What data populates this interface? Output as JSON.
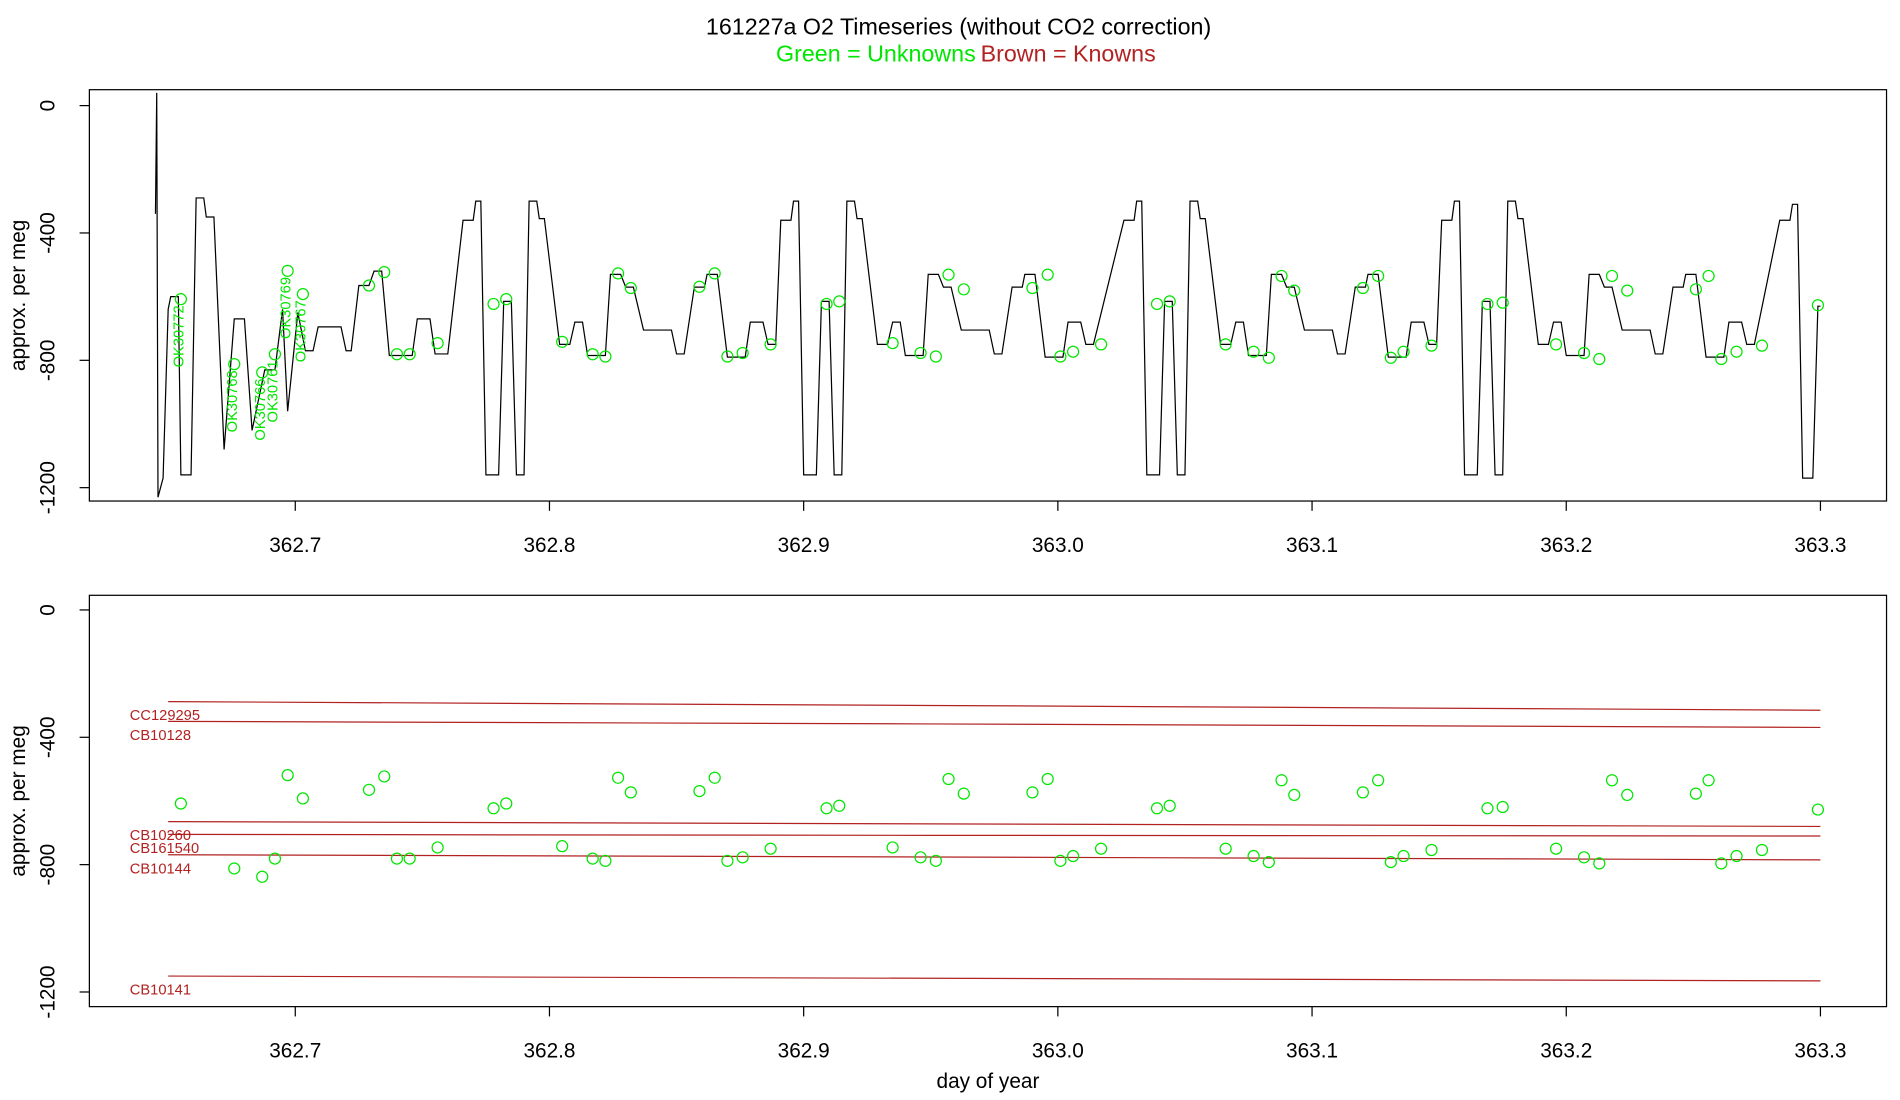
{
  "chart_data": [
    {
      "type": "line",
      "title": "161227a   O2 Timeseries (without CO2 correction)",
      "subtitle_unknowns": "Green = Unknowns",
      "subtitle_unknowns_color": "#00e600",
      "subtitle_knowns": "Brown = Knowns",
      "subtitle_knowns_color": "#b22222",
      "ylabel": "approx. per meg",
      "color": "#000000",
      "xlim": [
        362.619,
        363.326
      ],
      "ylim": [
        -1242,
        50
      ],
      "xticks": [
        362.7,
        362.8,
        362.9,
        {
          "value": 363,
          "label": "363.0"
        },
        363.1,
        363.2,
        363.3
      ],
      "yticks": [
        0,
        -400,
        -800,
        -1200
      ],
      "annotations": [
        "OK30772",
        "OK30768",
        "OK30766",
        "OK30761",
        "OK30769",
        "OK30767"
      ],
      "annotation_color": "#00e600",
      "x": [
        362.645,
        362.6455,
        362.646,
        362.648,
        362.65,
        362.651,
        362.654,
        362.655,
        362.659,
        362.661,
        362.664,
        362.665,
        362.668,
        362.672,
        362.676,
        362.68,
        362.683,
        362.688,
        362.692,
        362.695,
        362.697,
        362.701,
        362.704,
        362.707,
        362.709,
        362.718,
        362.72,
        362.722,
        362.725,
        362.729,
        362.731,
        362.734,
        362.737,
        362.746,
        362.748,
        362.753,
        362.755,
        362.76,
        362.766,
        362.77,
        362.771,
        362.773,
        362.775,
        362.78,
        362.782,
        362.785,
        362.787,
        362.79,
        362.792,
        362.795,
        362.796,
        362.798,
        362.804,
        362.808,
        362.81,
        362.813,
        362.815,
        362.822,
        362.824,
        362.828,
        362.83,
        362.833,
        362.837,
        362.848,
        362.85,
        362.853,
        362.857,
        362.861,
        362.862,
        362.866,
        362.87,
        362.877,
        362.879,
        362.884,
        362.886,
        362.889,
        362.891,
        362.895,
        362.896,
        362.898,
        362.9,
        362.905,
        362.907,
        362.91,
        362.912,
        362.915,
        362.917,
        362.92,
        362.921,
        362.923,
        362.929,
        362.933,
        362.935,
        362.938,
        362.94,
        362.947,
        362.949,
        362.953,
        362.955,
        362.958,
        362.962,
        362.973,
        362.975,
        362.978,
        362.982,
        362.986,
        362.987,
        362.991,
        362.995,
        363.002,
        363.004,
        363.009,
        363.011,
        363.014,
        363.026,
        363.03,
        363.031,
        363.033,
        363.035,
        363.04,
        363.042,
        363.045,
        363.047,
        363.05,
        363.052,
        363.055,
        363.056,
        363.058,
        363.064,
        363.068,
        363.07,
        363.073,
        363.075,
        363.082,
        363.084,
        363.088,
        363.09,
        363.093,
        363.097,
        363.108,
        363.11,
        363.113,
        363.117,
        363.121,
        363.122,
        363.126,
        363.13,
        363.137,
        363.139,
        363.144,
        363.146,
        363.149,
        363.151,
        363.155,
        363.156,
        363.158,
        363.16,
        363.165,
        363.167,
        363.17,
        363.172,
        363.175,
        363.177,
        363.18,
        363.181,
        363.183,
        363.189,
        363.193,
        363.195,
        363.198,
        363.2,
        363.207,
        363.209,
        363.213,
        363.215,
        363.218,
        363.222,
        363.233,
        363.235,
        363.238,
        363.242,
        363.246,
        363.247,
        363.251,
        363.255,
        363.262,
        363.264,
        363.269,
        363.271,
        363.274,
        363.284,
        363.288,
        363.289,
        363.291,
        363.293,
        363.297,
        363.299,
        363.3
      ],
      "values": [
        -340,
        40,
        -1230,
        -1170,
        -640,
        -600,
        -600,
        -1160,
        -1160,
        -290,
        -290,
        -350,
        -350,
        -1080,
        -670,
        -670,
        -1020,
        -830,
        -830,
        -640,
        -960,
        -650,
        -770,
        -770,
        -695,
        -695,
        -770,
        -770,
        -565,
        -565,
        -520,
        -520,
        -785,
        -785,
        -670,
        -670,
        -780,
        -780,
        -360,
        -360,
        -300,
        -300,
        -1160,
        -1160,
        -615,
        -615,
        -1160,
        -1160,
        -300,
        -300,
        -355,
        -355,
        -750,
        -750,
        -680,
        -680,
        -785,
        -785,
        -530,
        -530,
        -570,
        -570,
        -705,
        -705,
        -780,
        -780,
        -570,
        -570,
        -530,
        -530,
        -790,
        -790,
        -680,
        -680,
        -750,
        -750,
        -360,
        -360,
        -300,
        -300,
        -1160,
        -1160,
        -615,
        -615,
        -1160,
        -1160,
        -300,
        -300,
        -355,
        -355,
        -750,
        -750,
        -680,
        -680,
        -785,
        -785,
        -530,
        -530,
        -570,
        -570,
        -705,
        -705,
        -780,
        -780,
        -570,
        -570,
        -530,
        -530,
        -790,
        -790,
        -680,
        -680,
        -750,
        -750,
        -360,
        -360,
        -300,
        -300,
        -1160,
        -1160,
        -615,
        -615,
        -1160,
        -1160,
        -300,
        -300,
        -355,
        -355,
        -750,
        -750,
        -680,
        -680,
        -785,
        -785,
        -530,
        -530,
        -570,
        -570,
        -705,
        -705,
        -780,
        -780,
        -570,
        -570,
        -530,
        -530,
        -790,
        -790,
        -680,
        -680,
        -750,
        -750,
        -360,
        -360,
        -300,
        -300,
        -1160,
        -1160,
        -615,
        -615,
        -1160,
        -1160,
        -300,
        -300,
        -355,
        -355,
        -750,
        -750,
        -680,
        -680,
        -785,
        -785,
        -530,
        -530,
        -570,
        -570,
        -705,
        -705,
        -780,
        -780,
        -570,
        -570,
        -530,
        -530,
        -790,
        -790,
        -680,
        -680,
        -750,
        -750,
        -360,
        -360,
        -310,
        -310,
        -1170,
        -1170,
        -630,
        -630
      ]
    },
    {
      "type": "line",
      "ylabel": "approx. per meg",
      "xlabel": "day of year",
      "xlim": [
        362.619,
        363.326
      ],
      "ylim": [
        -1246,
        46
      ],
      "xticks": [
        362.7,
        362.8,
        362.9,
        {
          "value": 363,
          "label": "363.0"
        },
        363.1,
        363.2,
        363.3
      ],
      "yticks": [
        0,
        -400,
        -800,
        -1200
      ],
      "series": [
        {
          "name": "CC129295",
          "color": "#b22222",
          "x": [
            362.65,
            362.95,
            363.3
          ],
          "values": [
            -288,
            -300,
            -315
          ]
        },
        {
          "name": "CB10128",
          "color": "#b22222",
          "x": [
            362.65,
            362.95,
            363.3
          ],
          "values": [
            -350,
            -358,
            -369
          ]
        },
        {
          "name": "CB10260",
          "color": "#b22222",
          "x": [
            362.65,
            362.95,
            363.3
          ],
          "values": [
            -665,
            -672,
            -680
          ]
        },
        {
          "name": "CB161540",
          "color": "#b22222",
          "x": [
            362.65,
            362.95,
            363.3
          ],
          "values": [
            -705,
            -708,
            -710
          ]
        },
        {
          "name": "CB10144",
          "color": "#b22222",
          "x": [
            362.65,
            362.95,
            363.3
          ],
          "values": [
            -769,
            -776,
            -785
          ]
        },
        {
          "name": "CB10141",
          "color": "#b22222",
          "x": [
            362.65,
            362.95,
            363.3
          ],
          "values": [
            -1150,
            -1157,
            -1165
          ]
        }
      ],
      "points": {
        "color": "#00e600",
        "x": [
          362.655,
          362.676,
          362.687,
          362.692,
          362.697,
          362.703,
          362.729,
          362.735,
          362.74,
          362.745,
          362.756,
          362.778,
          362.783,
          362.805,
          362.817,
          362.822,
          362.827,
          362.832,
          362.859,
          362.865,
          362.87,
          362.876,
          362.887,
          362.909,
          362.914,
          362.935,
          362.946,
          362.952,
          362.957,
          362.963,
          362.99,
          362.996,
          363.001,
          363.006,
          363.017,
          363.039,
          363.044,
          363.066,
          363.077,
          363.083,
          363.088,
          363.093,
          363.12,
          363.126,
          363.131,
          363.136,
          363.147,
          363.169,
          363.175,
          363.196,
          363.207,
          363.213,
          363.218,
          363.224,
          363.251,
          363.256,
          363.261,
          363.267,
          363.277,
          363.299
        ],
        "values": [
          -608,
          -812,
          -838,
          -781,
          -519,
          -592,
          -565,
          -523,
          -781,
          -781,
          -746,
          -623,
          -608,
          -742,
          -781,
          -788,
          -527,
          -573,
          -569,
          -527,
          -788,
          -777,
          -750,
          -623,
          -615,
          -746,
          -777,
          -788,
          -531,
          -577,
          -573,
          -531,
          -788,
          -773,
          -750,
          -623,
          -615,
          -750,
          -773,
          -792,
          -535,
          -581,
          -573,
          -535,
          -792,
          -773,
          -754,
          -623,
          -619,
          -750,
          -777,
          -796,
          -535,
          -581,
          -577,
          -535,
          -796,
          -773,
          -754,
          -627
        ]
      }
    }
  ]
}
